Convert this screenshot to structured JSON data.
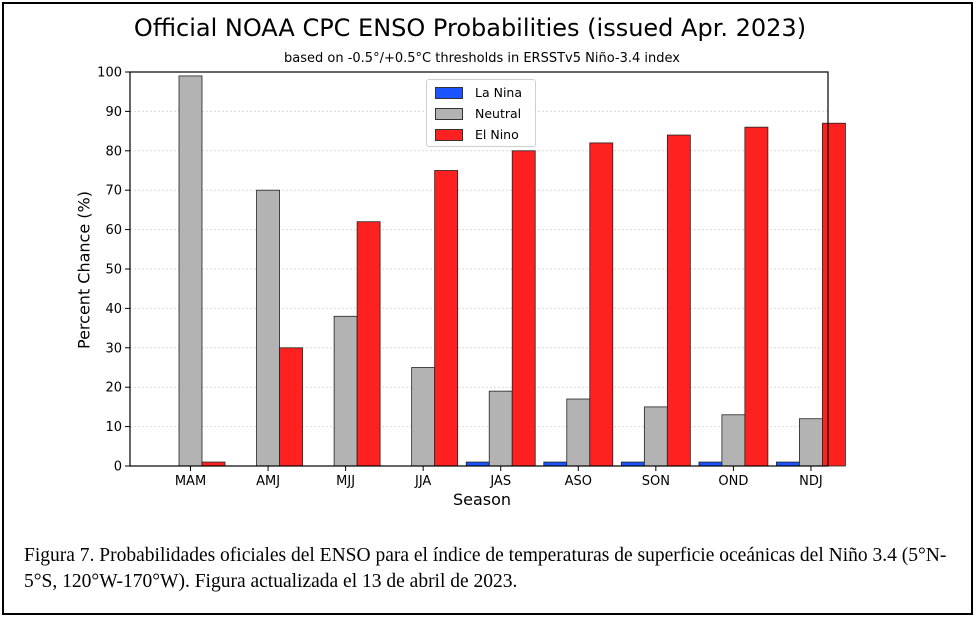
{
  "chart_data": {
    "type": "bar",
    "title": "Official NOAA CPC ENSO Probabilities (issued Apr. 2023)",
    "subtitle": "based on -0.5°/+0.5°C thresholds in ERSSTv5 Niño-3.4 index",
    "xlabel": "Season",
    "ylabel": "Percent Chance (%)",
    "ylim": [
      0,
      100
    ],
    "yticks": [
      0,
      10,
      20,
      30,
      40,
      50,
      60,
      70,
      80,
      90,
      100
    ],
    "grid": true,
    "legend_position": "top-center",
    "categories": [
      "MAM",
      "AMJ",
      "MJJ",
      "JJA",
      "JAS",
      "ASO",
      "SON",
      "OND",
      "NDJ"
    ],
    "series": [
      {
        "name": "La Nina",
        "color": "#1a53ff",
        "values": [
          0,
          0,
          0,
          0,
          1,
          1,
          1,
          1,
          1
        ]
      },
      {
        "name": "Neutral",
        "color": "#b3b3b3",
        "values": [
          99,
          70,
          38,
          25,
          19,
          17,
          15,
          13,
          12
        ]
      },
      {
        "name": "El Nino",
        "color": "#ff2020",
        "values": [
          1,
          30,
          62,
          75,
          80,
          82,
          84,
          86,
          87
        ]
      }
    ]
  },
  "caption": "Figura 7. Probabilidades oficiales del ENSO para el índice de temperaturas de superficie oceánicas del Niño 3.4 (5°N-5°S, 120°W-170°W). Figura actualizada el 13 de abril de 2023."
}
